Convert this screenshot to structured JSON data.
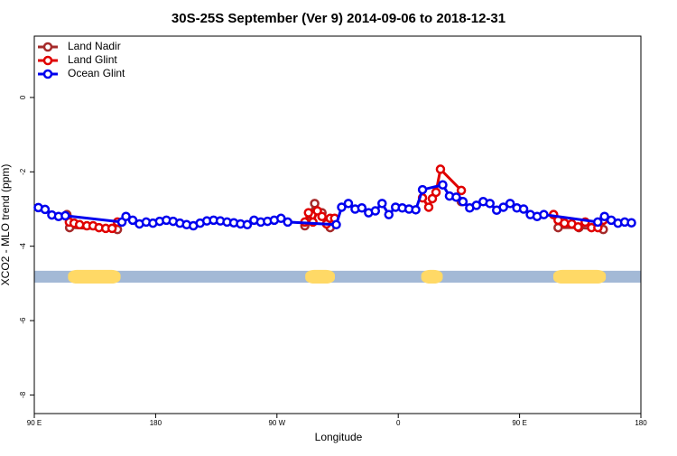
{
  "chart_data": {
    "type": "line",
    "title": "30S-25S September (Ver 9)   2014-09-06 to 2018-12-31",
    "xlabel": "Longitude",
    "ylabel": "XCO2 - MLO trend (ppm)",
    "xlim": [
      90,
      540
    ],
    "ylim": [
      -8.5,
      1.65
    ],
    "xticks": [
      {
        "value": 90,
        "label": "90 E"
      },
      {
        "value": 180,
        "label": "180"
      },
      {
        "value": 270,
        "label": "90 W"
      },
      {
        "value": 360,
        "label": "0"
      },
      {
        "value": 450,
        "label": "90 E"
      },
      {
        "value": 540,
        "label": "180"
      }
    ],
    "yticks": [
      0,
      -2,
      -4,
      -6,
      -8
    ],
    "legend": "top-left",
    "mask": {
      "y": [
        -4.98,
        -4.66
      ],
      "ocean_color": "#a3b9d6",
      "land_color": "#ffd966",
      "land": [
        [
          115,
          154
        ],
        [
          291,
          313
        ],
        [
          377,
          393
        ],
        [
          475,
          514
        ]
      ]
    },
    "series": [
      {
        "name": "Land Nadir",
        "color": "#a52a2a",
        "x": [
          114.2,
          116.2,
          151.7,
          220,
          290.7,
          298,
          303.4,
          309.5,
          360,
          406.8,
          440,
          475.2,
          478.6,
          494,
          512.1
        ],
        "values": [
          -3.15,
          -3.5,
          -3.55,
          null,
          -3.45,
          -2.85,
          -3.1,
          -3.5,
          null,
          -2.8,
          null,
          -3.15,
          -3.5,
          -3.5,
          -3.55
        ]
      },
      {
        "name": "Land Glint",
        "color": "#e00000",
        "x": [
          116,
          119.5,
          123.6,
          129,
          133.6,
          138,
          143,
          147.7,
          151.7,
          220,
          290.7,
          293.4,
          296.7,
          300,
          303.4,
          306.8,
          309.5,
          312.8,
          345,
          378,
          382.6,
          385.3,
          388,
          391.3,
          406.8,
          440,
          475.2,
          478.6,
          483.3,
          488.7,
          493.4,
          498.7,
          503.4,
          508.1,
          512.1
        ],
        "values": [
          -3.35,
          -3.38,
          -3.42,
          -3.45,
          -3.45,
          -3.5,
          -3.52,
          -3.52,
          -3.35,
          null,
          -3.35,
          -3.1,
          -3.35,
          -3.05,
          -3.2,
          -3.4,
          -3.25,
          -3.25,
          null,
          -2.7,
          -2.95,
          -2.72,
          -2.55,
          -1.93,
          -2.5,
          null,
          -3.15,
          -3.3,
          -3.38,
          -3.4,
          -3.48,
          -3.35,
          -3.5,
          -3.5,
          -3.3
        ]
      },
      {
        "name": "Ocean Glint",
        "color": "#0000ee",
        "x": [
          93,
          98,
          103,
          108,
          113,
          155,
          158,
          163,
          168,
          173,
          178,
          183,
          188,
          193,
          198,
          203,
          208,
          213,
          218,
          223,
          228,
          233,
          238,
          243,
          248,
          253,
          258,
          263,
          268,
          273,
          278,
          314,
          318,
          323,
          328,
          333,
          338,
          343,
          348,
          353,
          358,
          363,
          368,
          373,
          378,
          393,
          398,
          403,
          408,
          413,
          418,
          423,
          428,
          433,
          438,
          443,
          448,
          453,
          458,
          463,
          468,
          508,
          513,
          518,
          523,
          528,
          533
        ],
        "values": [
          -2.96,
          -3.01,
          -3.16,
          -3.2,
          -3.18,
          -3.35,
          -3.2,
          -3.3,
          -3.4,
          -3.35,
          -3.38,
          -3.33,
          -3.3,
          -3.33,
          -3.38,
          -3.42,
          -3.45,
          -3.38,
          -3.32,
          -3.3,
          -3.32,
          -3.35,
          -3.37,
          -3.4,
          -3.42,
          -3.3,
          -3.35,
          -3.33,
          -3.3,
          -3.25,
          -3.35,
          -3.42,
          -2.95,
          -2.85,
          -3.0,
          -2.97,
          -3.1,
          -3.05,
          -2.85,
          -3.15,
          -2.95,
          -2.97,
          -3.0,
          -3.02,
          -2.48,
          -2.35,
          -2.65,
          -2.68,
          -2.8,
          -2.97,
          -2.9,
          -2.8,
          -2.85,
          -3.03,
          -2.95,
          -2.85,
          -2.97,
          -3.0,
          -3.15,
          -3.2,
          -3.15,
          -3.35,
          -3.2,
          -3.3,
          -3.38,
          -3.35,
          -3.37
        ]
      }
    ]
  }
}
